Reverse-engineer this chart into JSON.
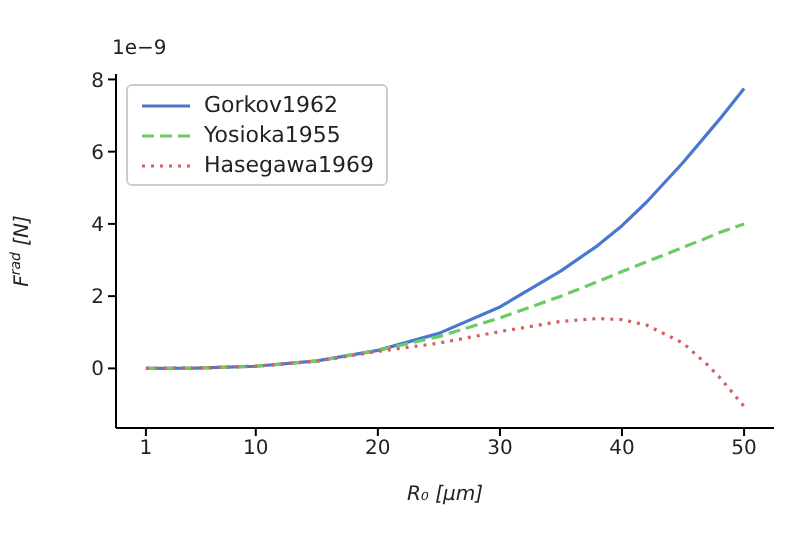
{
  "chart_data": {
    "type": "line",
    "xlabel": "R₀ [μm]",
    "ylabel": "F$^{rad}$ [N]",
    "annotations": [
      "1e−9"
    ],
    "x": [
      1,
      5,
      10,
      15,
      20,
      25,
      30,
      35,
      38,
      40,
      42,
      45,
      47,
      48,
      50
    ],
    "series": [
      {
        "name": "Gorkov1962",
        "color": "#4878d0",
        "line_style": "solid",
        "values": [
          0.0,
          0.01,
          0.06,
          0.21,
          0.5,
          0.97,
          1.7,
          2.7,
          3.4,
          3.95,
          4.6,
          5.7,
          6.5,
          6.9,
          7.75
        ]
      },
      {
        "name": "Yosioka1955",
        "color": "#6acc64",
        "line_style": "dashed",
        "values": [
          0.0,
          0.01,
          0.06,
          0.2,
          0.5,
          0.88,
          1.4,
          2.0,
          2.4,
          2.68,
          2.95,
          3.35,
          3.62,
          3.76,
          4.0
        ]
      },
      {
        "name": "Hasegawa1969",
        "color": "#d65f5f",
        "line_style": "dotted",
        "values": [
          0.0,
          0.01,
          0.06,
          0.2,
          0.47,
          0.7,
          1.02,
          1.3,
          1.38,
          1.35,
          1.2,
          0.7,
          0.1,
          -0.25,
          -1.05
        ]
      }
    ],
    "xlim": [
      -1.45,
      52.45
    ],
    "xticks": [
      1,
      10,
      20,
      30,
      40,
      50
    ],
    "ylim": [
      -1.65,
      8.15
    ],
    "yticks": [
      0,
      2,
      4,
      6,
      8
    ],
    "grid": false,
    "legend": "top left",
    "marker": "none"
  }
}
